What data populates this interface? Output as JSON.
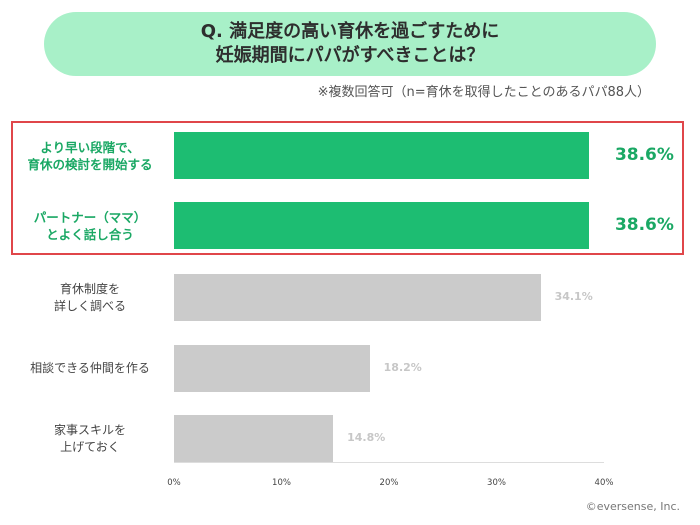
{
  "title": {
    "line1": "Q. 満足度の高い育休を過ごすために",
    "line2": "妊娠期間にパパがすべきことは？"
  },
  "subtitle": "※複数回答可（n=育休を取得したことのあるパパ88人）",
  "colors": {
    "highlight": "#1dbd72",
    "highlight_text": "#1aa864",
    "plain": "#cbcbcb",
    "title_bg": "#a8f0c8",
    "frame": "#e0464a"
  },
  "chart_data": {
    "type": "bar",
    "orientation": "horizontal",
    "categories": [
      [
        "より早い段階で、",
        "育休の検討を開始する"
      ],
      [
        "パートナー（ママ）",
        "とよく話し合う"
      ],
      [
        "育休制度を",
        "詳しく調べる"
      ],
      [
        "相談できる仲間を作る"
      ],
      [
        "家事スキルを",
        "上げておく"
      ]
    ],
    "values": [
      38.6,
      38.6,
      34.1,
      18.2,
      14.8
    ],
    "value_labels": [
      "38.6%",
      "38.6%",
      "34.1%",
      "18.2%",
      "14.8%"
    ],
    "highlighted": [
      true,
      true,
      false,
      false,
      false
    ],
    "xlim": [
      0,
      40
    ],
    "xticks": [
      0,
      10,
      20,
      30,
      40
    ],
    "xtick_labels": [
      "0%",
      "10%",
      "20%",
      "30%",
      "40%"
    ],
    "grid": false
  },
  "copyright": "©eversense, Inc."
}
